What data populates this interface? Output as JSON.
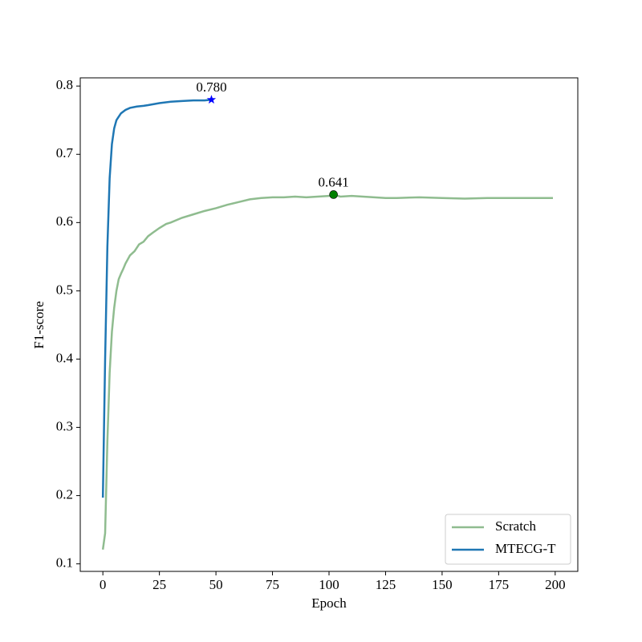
{
  "chart_data": {
    "type": "line",
    "x_label": "Epoch",
    "y_label": "F1-score",
    "xlim": [
      -10,
      210
    ],
    "xticks": [
      0,
      25,
      50,
      75,
      100,
      125,
      150,
      175,
      200
    ],
    "ylim": [
      0.089,
      0.812
    ],
    "yticks": [
      0.1,
      0.2,
      0.3,
      0.4,
      0.5,
      0.6,
      0.7,
      0.8
    ],
    "legend": "lower right",
    "series": [
      {
        "name": "Scratch",
        "color": "#8fbc8f",
        "x": [
          0,
          1,
          2,
          3,
          4,
          5,
          6,
          7,
          8,
          9,
          10,
          12,
          14,
          16,
          18,
          20,
          22,
          25,
          28,
          30,
          35,
          40,
          45,
          50,
          55,
          60,
          65,
          70,
          75,
          80,
          85,
          90,
          95,
          100,
          102,
          105,
          110,
          115,
          120,
          125,
          130,
          140,
          150,
          160,
          170,
          180,
          190,
          199
        ],
        "values": [
          0.121,
          0.145,
          0.28,
          0.38,
          0.44,
          0.475,
          0.5,
          0.517,
          0.525,
          0.532,
          0.54,
          0.552,
          0.558,
          0.568,
          0.572,
          0.58,
          0.585,
          0.592,
          0.598,
          0.6,
          0.607,
          0.612,
          0.617,
          0.621,
          0.626,
          0.63,
          0.634,
          0.636,
          0.637,
          0.637,
          0.638,
          0.637,
          0.638,
          0.639,
          0.641,
          0.638,
          0.639,
          0.638,
          0.637,
          0.636,
          0.636,
          0.637,
          0.636,
          0.635,
          0.636,
          0.636,
          0.636,
          0.636
        ]
      },
      {
        "name": "MTECG-T",
        "color": "#1f77b4",
        "x": [
          0,
          1,
          2,
          3,
          4,
          5,
          6,
          7,
          8,
          10,
          12,
          15,
          18,
          20,
          25,
          30,
          35,
          40,
          45,
          48
        ],
        "values": [
          0.197,
          0.4,
          0.565,
          0.665,
          0.715,
          0.738,
          0.75,
          0.755,
          0.76,
          0.765,
          0.768,
          0.77,
          0.771,
          0.772,
          0.775,
          0.777,
          0.778,
          0.779,
          0.779,
          0.78
        ]
      }
    ],
    "annotations": [
      {
        "label": "0.780",
        "x": 48,
        "y": 0.78,
        "marker": "star",
        "color": "#0000ff"
      },
      {
        "label": "0.641",
        "x": 102,
        "y": 0.641,
        "marker": "circle",
        "color": "#008000"
      }
    ]
  }
}
